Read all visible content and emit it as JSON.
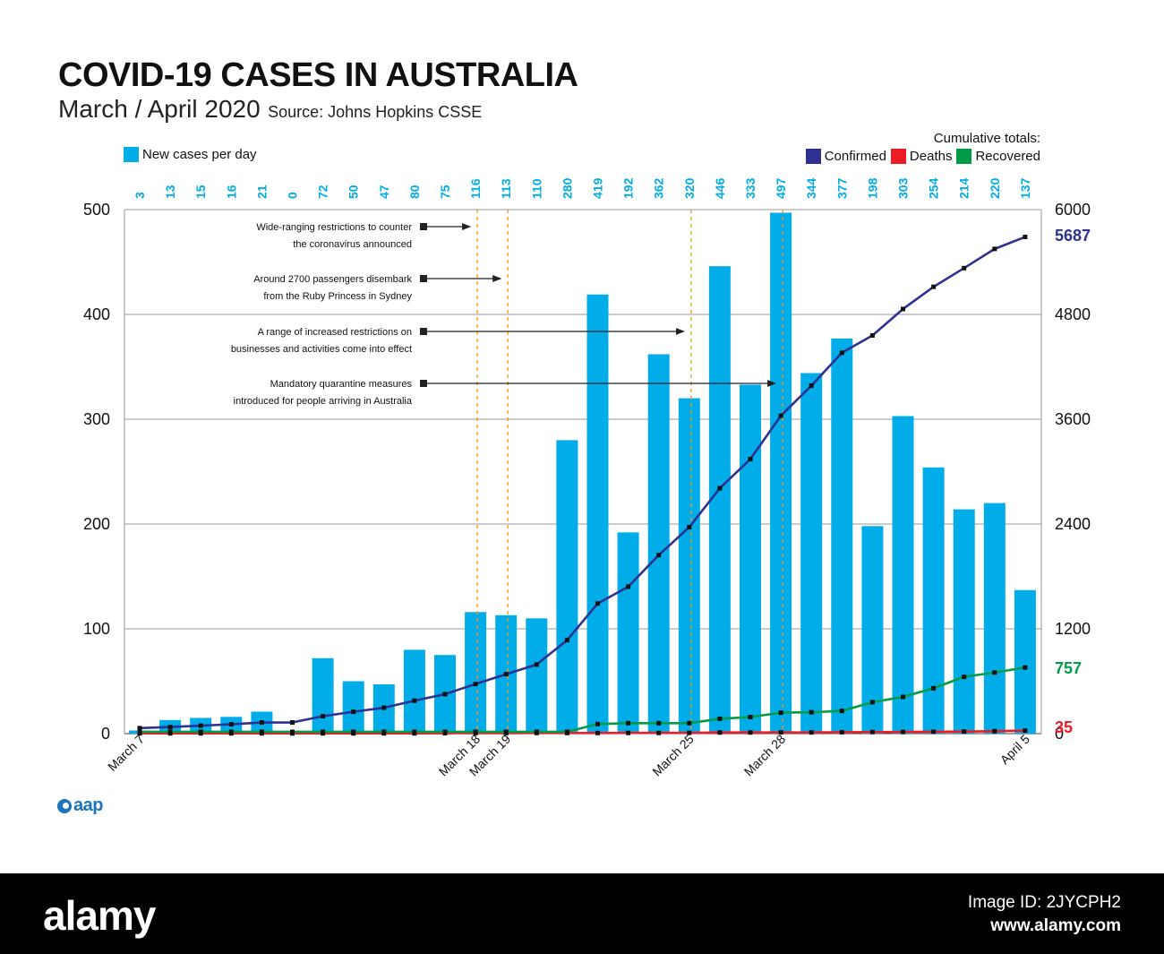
{
  "header": {
    "title": "COVID-19 CASES IN AUSTRALIA",
    "subtitle": "March / April 2020",
    "source": "Source: Johns Hopkins CSSE"
  },
  "legend": {
    "new_cases_label": "New cases per day",
    "cumulative_title": "Cumulative totals:",
    "confirmed_label": "Confirmed",
    "deaths_label": "Deaths",
    "recovered_label": "Recovered"
  },
  "colors": {
    "bars": "#00ade9",
    "confirmed": "#2e3192",
    "deaths": "#ed1c24",
    "recovered": "#009b48",
    "event_lines": "#f7941d",
    "grid": "#999999"
  },
  "chart_data": {
    "type": "bar",
    "title": "COVID-19 CASES IN AUSTRALIA",
    "subtitle": "March / April 2020",
    "x_tick_labels": [
      "March 7",
      "March 18",
      "March 19",
      "March 25",
      "March 28",
      "April 5"
    ],
    "left_axis": {
      "ticks": [
        "0",
        "100",
        "200",
        "300",
        "400",
        "500"
      ],
      "ylim": [
        0,
        500
      ]
    },
    "right_axis": {
      "ticks": [
        "0",
        "1200",
        "2400",
        "3600",
        "4800",
        "6000"
      ],
      "ylim": [
        0,
        6000
      ]
    },
    "grid": true,
    "new_cases": {
      "name": "New cases per day",
      "values": [
        3,
        13,
        15,
        16,
        21,
        0,
        72,
        50,
        47,
        80,
        75,
        116,
        113,
        110,
        280,
        419,
        192,
        362,
        320,
        446,
        333,
        497,
        344,
        377,
        198,
        303,
        254,
        214,
        220,
        137
      ],
      "labels": [
        "3",
        "13",
        "15",
        "16",
        "21",
        "0",
        "72",
        "50",
        "47",
        "80",
        "75",
        "116",
        "113",
        "110",
        "280",
        "419",
        "192",
        "362",
        "320",
        "446",
        "333",
        "497",
        "344",
        "377",
        "198",
        "303",
        "254",
        "214",
        "220",
        "137"
      ]
    },
    "series": [
      {
        "name": "Confirmed",
        "values": [
          63,
          76,
          91,
          107,
          128,
          128,
          200,
          250,
          297,
          377,
          452,
          568,
          681,
          791,
          1071,
          1490,
          1682,
          2044,
          2364,
          2810,
          3143,
          3640,
          3984,
          4361,
          4559,
          4862,
          5116,
          5330,
          5550,
          5687
        ],
        "end_label": "5687"
      },
      {
        "name": "Deaths",
        "values": [
          3,
          3,
          3,
          3,
          3,
          3,
          3,
          3,
          3,
          3,
          5,
          6,
          6,
          7,
          7,
          7,
          8,
          8,
          9,
          13,
          13,
          14,
          14,
          16,
          18,
          19,
          21,
          24,
          28,
          35
        ],
        "end_label": "35"
      },
      {
        "name": "Recovered",
        "values": [
          21,
          21,
          21,
          21,
          21,
          21,
          21,
          21,
          21,
          21,
          21,
          21,
          21,
          21,
          21,
          110,
          120,
          120,
          120,
          170,
          190,
          240,
          245,
          260,
          360,
          420,
          520,
          650,
          700,
          757
        ],
        "end_label": "757"
      }
    ],
    "event_lines": [
      {
        "day_index": 11,
        "text": [
          "Wide-ranging restrictions to counter",
          "the coronavirus announced"
        ]
      },
      {
        "day_index": 12,
        "text": [
          "Around 2700 passengers disembark",
          "from the Ruby Princess in Sydney"
        ]
      },
      {
        "day_index": 18,
        "text": [
          "A range of increased restrictions on",
          "businesses and activities come into effect"
        ]
      },
      {
        "day_index": 21,
        "text": [
          "Mandatory quarantine measures",
          "introduced for people arriving in Australia"
        ]
      }
    ]
  },
  "logo": {
    "aap": "aap"
  },
  "watermark": {
    "logo": "alamy",
    "image_id": "Image ID: 2JYCPH2",
    "url": "www.alamy.com"
  }
}
